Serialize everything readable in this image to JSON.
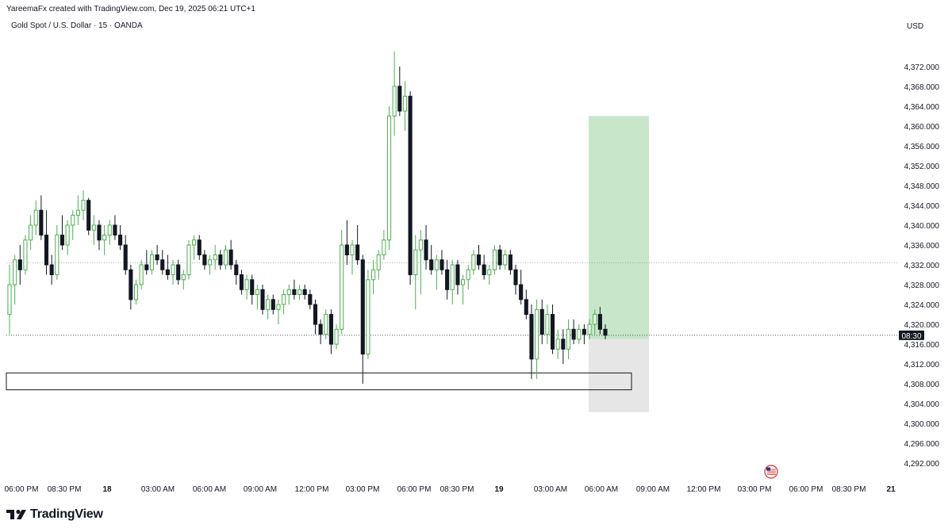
{
  "header": {
    "created_by": "YareemaFx created with TradingView.com, Dec 19, 2025 06:21 UTC+1",
    "symbol": "Gold Spot / U.S. Dollar · 15 · OANDA",
    "currency": "USD"
  },
  "footer": {
    "brand": "TradingView"
  },
  "colors": {
    "bull": "#4caf50",
    "bull_body": "#ffffff",
    "bear": "#131722",
    "profit_zone": "#c8e6c9",
    "stop_zone": "#e6e6e6",
    "grid": "#d1d4dc",
    "text": "#131722"
  },
  "chart_data": {
    "type": "candlestick",
    "title": "Gold Spot / U.S. Dollar · 15 · OANDA",
    "ylim": [
      4289,
      4379
    ],
    "y_ticks": [
      "4,372.000",
      "4,368.000",
      "4,364.000",
      "4,360.000",
      "4,356.000",
      "4,352.000",
      "4,348.000",
      "4,344.000",
      "4,340.000",
      "4,336.000",
      "4,332.000",
      "4,328.000",
      "4,324.000",
      "4,320.000",
      "4,316.000",
      "4,312.000",
      "4,308.000",
      "4,304.000",
      "4,300.000",
      "4,296.000",
      "4,292.000"
    ],
    "y_tick_values": [
      4372,
      4368,
      4364,
      4360,
      4356,
      4352,
      4348,
      4344,
      4340,
      4336,
      4332,
      4328,
      4324,
      4320,
      4316,
      4312,
      4308,
      4304,
      4300,
      4296,
      4292
    ],
    "x_ticks": [
      "06:00 PM",
      "08:30 PM",
      "18",
      "03:00 AM",
      "06:00 AM",
      "09:00 AM",
      "12:00 PM",
      "03:00 PM",
      "06:00 PM",
      "08:30 PM",
      "19",
      "03:00 AM",
      "06:00 AM",
      "09:00 AM",
      "12:00 PM",
      "03:00 PM",
      "06:00 PM",
      "08:30 PM",
      "21"
    ],
    "x_tick_bold": [
      false,
      false,
      true,
      false,
      false,
      false,
      false,
      false,
      false,
      false,
      true,
      false,
      false,
      false,
      false,
      false,
      false,
      false,
      true
    ],
    "price_label": "08:30",
    "current_price": 4317.8,
    "dotted_level": 4332.4,
    "zone_box": {
      "top": 4310.2,
      "bottom": 4306.8
    },
    "position": {
      "target": 4362.0,
      "entry": 4317.0,
      "stop": 4302.3
    },
    "candles": [
      {
        "o": 4322.0,
        "h": 4332.0,
        "l": 4318.0,
        "c": 4328.0
      },
      {
        "o": 4328.0,
        "h": 4334.0,
        "l": 4324.0,
        "c": 4333.0
      },
      {
        "o": 4333.0,
        "h": 4336.0,
        "l": 4328.0,
        "c": 4331.0
      },
      {
        "o": 4331.0,
        "h": 4338.0,
        "l": 4330.0,
        "c": 4337.0
      },
      {
        "o": 4337.0,
        "h": 4342.0,
        "l": 4335.0,
        "c": 4340.0
      },
      {
        "o": 4340.0,
        "h": 4345.0,
        "l": 4338.0,
        "c": 4343.0
      },
      {
        "o": 4343.0,
        "h": 4346.0,
        "l": 4337.0,
        "c": 4338.0
      },
      {
        "o": 4338.0,
        "h": 4343.0,
        "l": 4330.0,
        "c": 4332.0
      },
      {
        "o": 4332.0,
        "h": 4334.0,
        "l": 4328.0,
        "c": 4330.0
      },
      {
        "o": 4330.0,
        "h": 4340.0,
        "l": 4329.0,
        "c": 4338.0
      },
      {
        "o": 4338.0,
        "h": 4342.0,
        "l": 4335.0,
        "c": 4336.0
      },
      {
        "o": 4336.0,
        "h": 4341.0,
        "l": 4334.0,
        "c": 4340.0
      },
      {
        "o": 4340.0,
        "h": 4343.0,
        "l": 4337.0,
        "c": 4342.0
      },
      {
        "o": 4342.0,
        "h": 4346.0,
        "l": 4340.0,
        "c": 4343.0
      },
      {
        "o": 4343.0,
        "h": 4347.0,
        "l": 4341.0,
        "c": 4345.0
      },
      {
        "o": 4345.0,
        "h": 4345.5,
        "l": 4338.0,
        "c": 4339.0
      },
      {
        "o": 4339.0,
        "h": 4342.0,
        "l": 4336.0,
        "c": 4340.0
      },
      {
        "o": 4340.0,
        "h": 4341.0,
        "l": 4335.0,
        "c": 4337.0
      },
      {
        "o": 4337.0,
        "h": 4340.0,
        "l": 4334.0,
        "c": 4338.0
      },
      {
        "o": 4338.0,
        "h": 4341.0,
        "l": 4336.0,
        "c": 4340.0
      },
      {
        "o": 4340.0,
        "h": 4342.0,
        "l": 4337.0,
        "c": 4338.0
      },
      {
        "o": 4338.0,
        "h": 4340.0,
        "l": 4335.0,
        "c": 4336.0
      },
      {
        "o": 4336.0,
        "h": 4338.0,
        "l": 4330.0,
        "c": 4331.0
      },
      {
        "o": 4331.0,
        "h": 4332.0,
        "l": 4323.0,
        "c": 4325.0
      },
      {
        "o": 4325.0,
        "h": 4329.0,
        "l": 4324.0,
        "c": 4328.0
      },
      {
        "o": 4328.0,
        "h": 4333.0,
        "l": 4327.0,
        "c": 4332.0
      },
      {
        "o": 4332.0,
        "h": 4335.0,
        "l": 4330.0,
        "c": 4331.0
      },
      {
        "o": 4331.0,
        "h": 4335.0,
        "l": 4330.0,
        "c": 4334.0
      },
      {
        "o": 4334.0,
        "h": 4336.0,
        "l": 4332.0,
        "c": 4333.0
      },
      {
        "o": 4333.0,
        "h": 4335.0,
        "l": 4330.0,
        "c": 4331.0
      },
      {
        "o": 4331.0,
        "h": 4334.0,
        "l": 4329.0,
        "c": 4330.0
      },
      {
        "o": 4330.0,
        "h": 4333.0,
        "l": 4328.0,
        "c": 4332.0
      },
      {
        "o": 4332.0,
        "h": 4333.0,
        "l": 4328.0,
        "c": 4329.0
      },
      {
        "o": 4329.0,
        "h": 4331.0,
        "l": 4327.0,
        "c": 4330.0
      },
      {
        "o": 4330.0,
        "h": 4337.0,
        "l": 4329.0,
        "c": 4336.0
      },
      {
        "o": 4336.0,
        "h": 4338.0,
        "l": 4333.0,
        "c": 4337.0
      },
      {
        "o": 4337.0,
        "h": 4338.0,
        "l": 4333.0,
        "c": 4334.0
      },
      {
        "o": 4334.0,
        "h": 4335.0,
        "l": 4331.0,
        "c": 4332.0
      },
      {
        "o": 4332.0,
        "h": 4334.0,
        "l": 4330.0,
        "c": 4333.0
      },
      {
        "o": 4333.0,
        "h": 4336.0,
        "l": 4331.0,
        "c": 4334.0
      },
      {
        "o": 4334.0,
        "h": 4335.0,
        "l": 4331.0,
        "c": 4332.0
      },
      {
        "o": 4332.0,
        "h": 4336.0,
        "l": 4331.0,
        "c": 4335.0
      },
      {
        "o": 4335.0,
        "h": 4337.0,
        "l": 4331.0,
        "c": 4332.0
      },
      {
        "o": 4332.0,
        "h": 4333.0,
        "l": 4328.0,
        "c": 4330.0
      },
      {
        "o": 4330.0,
        "h": 4331.0,
        "l": 4326.0,
        "c": 4327.0
      },
      {
        "o": 4327.0,
        "h": 4330.0,
        "l": 4325.0,
        "c": 4329.0
      },
      {
        "o": 4329.0,
        "h": 4330.0,
        "l": 4324.0,
        "c": 4326.0
      },
      {
        "o": 4326.0,
        "h": 4328.0,
        "l": 4323.0,
        "c": 4327.0
      },
      {
        "o": 4327.0,
        "h": 4328.0,
        "l": 4322.0,
        "c": 4323.0
      },
      {
        "o": 4323.0,
        "h": 4326.0,
        "l": 4321.0,
        "c": 4325.0
      },
      {
        "o": 4325.0,
        "h": 4326.0,
        "l": 4322.0,
        "c": 4323.0
      },
      {
        "o": 4323.0,
        "h": 4325.0,
        "l": 4320.0,
        "c": 4324.0
      },
      {
        "o": 4324.0,
        "h": 4327.0,
        "l": 4322.0,
        "c": 4326.0
      },
      {
        "o": 4326.0,
        "h": 4328.0,
        "l": 4324.0,
        "c": 4327.0
      },
      {
        "o": 4327.0,
        "h": 4329.0,
        "l": 4325.0,
        "c": 4326.0
      },
      {
        "o": 4326.0,
        "h": 4328.0,
        "l": 4325.0,
        "c": 4327.0
      },
      {
        "o": 4327.0,
        "h": 4328.0,
        "l": 4325.0,
        "c": 4326.0
      },
      {
        "o": 4326.0,
        "h": 4327.0,
        "l": 4323.0,
        "c": 4324.0
      },
      {
        "o": 4324.0,
        "h": 4325.0,
        "l": 4318.0,
        "c": 4320.0
      },
      {
        "o": 4320.0,
        "h": 4321.0,
        "l": 4316.0,
        "c": 4318.0
      },
      {
        "o": 4318.0,
        "h": 4323.0,
        "l": 4317.0,
        "c": 4322.0
      },
      {
        "o": 4322.0,
        "h": 4323.0,
        "l": 4314.0,
        "c": 4316.0
      },
      {
        "o": 4316.0,
        "h": 4320.0,
        "l": 4315.0,
        "c": 4319.0
      },
      {
        "o": 4319.0,
        "h": 4339.0,
        "l": 4318.0,
        "c": 4336.0
      },
      {
        "o": 4336.0,
        "h": 4341.0,
        "l": 4332.0,
        "c": 4334.0
      },
      {
        "o": 4334.0,
        "h": 4337.0,
        "l": 4330.0,
        "c": 4336.0
      },
      {
        "o": 4336.0,
        "h": 4340.0,
        "l": 4332.0,
        "c": 4333.0
      },
      {
        "o": 4333.0,
        "h": 4334.0,
        "l": 4308.0,
        "c": 4314.0
      },
      {
        "o": 4314.0,
        "h": 4331.0,
        "l": 4313.0,
        "c": 4329.0
      },
      {
        "o": 4329.0,
        "h": 4333.0,
        "l": 4326.0,
        "c": 4331.0
      },
      {
        "o": 4331.0,
        "h": 4335.0,
        "l": 4329.0,
        "c": 4334.0
      },
      {
        "o": 4334.0,
        "h": 4339.0,
        "l": 4333.0,
        "c": 4337.0
      },
      {
        "o": 4337.0,
        "h": 4364.0,
        "l": 4335.0,
        "c": 4362.0
      },
      {
        "o": 4362.0,
        "h": 4375.0,
        "l": 4358.0,
        "c": 4368.0
      },
      {
        "o": 4368.0,
        "h": 4372.0,
        "l": 4362.0,
        "c": 4363.0
      },
      {
        "o": 4363.0,
        "h": 4369.0,
        "l": 4359.0,
        "c": 4366.0
      },
      {
        "o": 4366.0,
        "h": 4367.0,
        "l": 4328.0,
        "c": 4330.0
      },
      {
        "o": 4330.0,
        "h": 4338.0,
        "l": 4323.0,
        "c": 4335.0
      },
      {
        "o": 4335.0,
        "h": 4339.0,
        "l": 4326.0,
        "c": 4337.0
      },
      {
        "o": 4337.0,
        "h": 4340.0,
        "l": 4331.0,
        "c": 4333.0
      },
      {
        "o": 4333.0,
        "h": 4336.0,
        "l": 4330.0,
        "c": 4331.0
      },
      {
        "o": 4331.0,
        "h": 4334.0,
        "l": 4327.0,
        "c": 4333.0
      },
      {
        "o": 4333.0,
        "h": 4335.0,
        "l": 4330.0,
        "c": 4331.0
      },
      {
        "o": 4331.0,
        "h": 4333.0,
        "l": 4325.0,
        "c": 4327.0
      },
      {
        "o": 4327.0,
        "h": 4333.0,
        "l": 4324.0,
        "c": 4332.0
      },
      {
        "o": 4332.0,
        "h": 4333.0,
        "l": 4326.0,
        "c": 4328.0
      },
      {
        "o": 4328.0,
        "h": 4330.0,
        "l": 4324.0,
        "c": 4329.0
      },
      {
        "o": 4329.0,
        "h": 4332.0,
        "l": 4327.0,
        "c": 4331.0
      },
      {
        "o": 4331.0,
        "h": 4335.0,
        "l": 4330.0,
        "c": 4334.0
      },
      {
        "o": 4334.0,
        "h": 4336.0,
        "l": 4331.0,
        "c": 4332.0
      },
      {
        "o": 4332.0,
        "h": 4334.0,
        "l": 4329.0,
        "c": 4330.0
      },
      {
        "o": 4330.0,
        "h": 4332.0,
        "l": 4328.0,
        "c": 4331.0
      },
      {
        "o": 4331.0,
        "h": 4336.0,
        "l": 4330.0,
        "c": 4335.0
      },
      {
        "o": 4335.0,
        "h": 4336.0,
        "l": 4331.0,
        "c": 4332.0
      },
      {
        "o": 4332.0,
        "h": 4335.0,
        "l": 4331.0,
        "c": 4334.0
      },
      {
        "o": 4334.0,
        "h": 4335.0,
        "l": 4330.0,
        "c": 4331.0
      },
      {
        "o": 4331.0,
        "h": 4332.0,
        "l": 4326.0,
        "c": 4328.0
      },
      {
        "o": 4328.0,
        "h": 4331.0,
        "l": 4324.0,
        "c": 4325.0
      },
      {
        "o": 4325.0,
        "h": 4327.0,
        "l": 4321.0,
        "c": 4322.0
      },
      {
        "o": 4322.0,
        "h": 4324.0,
        "l": 4309.0,
        "c": 4313.0
      },
      {
        "o": 4313.0,
        "h": 4325.0,
        "l": 4309.0,
        "c": 4323.0
      },
      {
        "o": 4323.0,
        "h": 4325.0,
        "l": 4316.0,
        "c": 4318.0
      },
      {
        "o": 4318.0,
        "h": 4324.0,
        "l": 4316.0,
        "c": 4322.0
      },
      {
        "o": 4322.0,
        "h": 4324.0,
        "l": 4314.0,
        "c": 4315.0
      },
      {
        "o": 4315.0,
        "h": 4319.0,
        "l": 4313.0,
        "c": 4317.0
      },
      {
        "o": 4317.0,
        "h": 4319.0,
        "l": 4312.0,
        "c": 4315.0
      },
      {
        "o": 4315.0,
        "h": 4321.0,
        "l": 4313.0,
        "c": 4319.0
      },
      {
        "o": 4319.0,
        "h": 4321.0,
        "l": 4316.0,
        "c": 4317.0
      },
      {
        "o": 4317.0,
        "h": 4320.0,
        "l": 4316.0,
        "c": 4319.0
      },
      {
        "o": 4319.0,
        "h": 4320.0,
        "l": 4316.0,
        "c": 4318.0
      },
      {
        "o": 4318.0,
        "h": 4321.0,
        "l": 4317.0,
        "c": 4320.0
      },
      {
        "o": 4320.0,
        "h": 4323.0,
        "l": 4318.0,
        "c": 4322.0
      },
      {
        "o": 4322.0,
        "h": 4323.5,
        "l": 4318.0,
        "c": 4319.0
      },
      {
        "o": 4319.0,
        "h": 4320.0,
        "l": 4317.0,
        "c": 4317.8
      }
    ]
  }
}
